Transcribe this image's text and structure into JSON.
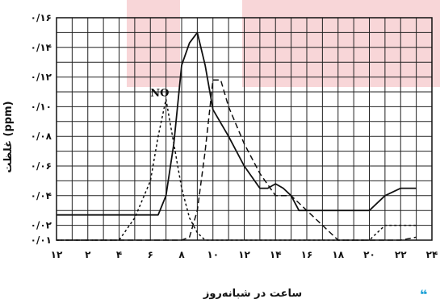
{
  "chart_data": {
    "type": "line",
    "ylabel": "غلظت (ppm)",
    "xlabel": "ساعت در شبانه‌روز",
    "x_ticks": [
      {
        "v": 0,
        "label": "۱۲"
      },
      {
        "v": 2,
        "label": "۲"
      },
      {
        "v": 4,
        "label": "۴"
      },
      {
        "v": 6,
        "label": "۶"
      },
      {
        "v": 8,
        "label": "۸"
      },
      {
        "v": 10,
        "label": "۱۰"
      },
      {
        "v": 12,
        "label": "۱۲"
      },
      {
        "v": 14,
        "label": "۱۴"
      },
      {
        "v": 16,
        "label": "۱۶"
      },
      {
        "v": 18,
        "label": "۱۸"
      },
      {
        "v": 20,
        "label": "۲۰"
      },
      {
        "v": 22,
        "label": "۲۲"
      },
      {
        "v": 24,
        "label": "۲۴"
      }
    ],
    "y_ticks": [
      {
        "v": 0.01,
        "label": "۰/۰۱"
      },
      {
        "v": 0.02,
        "label": "۰/۰۲"
      },
      {
        "v": 0.04,
        "label": "۰/۰۴"
      },
      {
        "v": 0.06,
        "label": "۰/۰۶"
      },
      {
        "v": 0.08,
        "label": "۰/۰۸"
      },
      {
        "v": 0.1,
        "label": "۰/۱۰"
      },
      {
        "v": 0.12,
        "label": "۰/۱۲"
      },
      {
        "v": 0.14,
        "label": "۰/۱۴"
      },
      {
        "v": 0.16,
        "label": "۰/۱۶"
      }
    ],
    "xlim": [
      0,
      24
    ],
    "ylim": [
      0.01,
      0.16
    ],
    "grid": true,
    "annotations": [
      {
        "text": "NO",
        "x": 6.6,
        "y": 0.107
      }
    ],
    "series": [
      {
        "style": "solid",
        "x": [
          0,
          1,
          2,
          3,
          4,
          5,
          6,
          6.5,
          7,
          7.5,
          8,
          8.5,
          9,
          9.5,
          10,
          11,
          12,
          13,
          13.5,
          14,
          14.5,
          15,
          15.5,
          16,
          17,
          18,
          19,
          20,
          21,
          22,
          23
        ],
        "y": [
          0.027,
          0.027,
          0.027,
          0.027,
          0.027,
          0.027,
          0.027,
          0.027,
          0.04,
          0.075,
          0.128,
          0.143,
          0.15,
          0.128,
          0.098,
          0.08,
          0.06,
          0.045,
          0.045,
          0.048,
          0.045,
          0.04,
          0.03,
          0.03,
          0.03,
          0.03,
          0.03,
          0.03,
          0.04,
          0.045,
          0.045
        ]
      },
      {
        "style": "dashed",
        "x": [
          0,
          1,
          2,
          3,
          4,
          5,
          6,
          6.5,
          7,
          7.5,
          8,
          8.5,
          9,
          9.5,
          10,
          10.5,
          11,
          12,
          13,
          14,
          14.5,
          15,
          15.5,
          16,
          17,
          18,
          19,
          20,
          21,
          22,
          23
        ],
        "y": [
          0.01,
          0.01,
          0.01,
          0.01,
          0.01,
          0.01,
          0.01,
          0.01,
          0.01,
          0.01,
          0.01,
          0.012,
          0.03,
          0.07,
          0.118,
          0.118,
          0.1,
          0.075,
          0.055,
          0.04,
          0.04,
          0.04,
          0.035,
          0.03,
          0.02,
          0.01,
          0.01,
          0.01,
          0.01,
          0.01,
          0.012
        ]
      },
      {
        "style": "dotted",
        "x": [
          0,
          1,
          2,
          3,
          4,
          5,
          6,
          6.5,
          7,
          7.5,
          8,
          8.5,
          9,
          9.5,
          10,
          11,
          12,
          13,
          14,
          15,
          16,
          17,
          18,
          19,
          20,
          21,
          22,
          23
        ],
        "y": [
          0.01,
          0.01,
          0.01,
          0.01,
          0.01,
          0.025,
          0.05,
          0.08,
          0.105,
          0.075,
          0.045,
          0.025,
          0.015,
          0.01,
          0.01,
          0.01,
          0.01,
          0.01,
          0.01,
          0.01,
          0.01,
          0.01,
          0.01,
          0.01,
          0.01,
          0.02,
          0.02,
          0.02
        ]
      }
    ]
  }
}
